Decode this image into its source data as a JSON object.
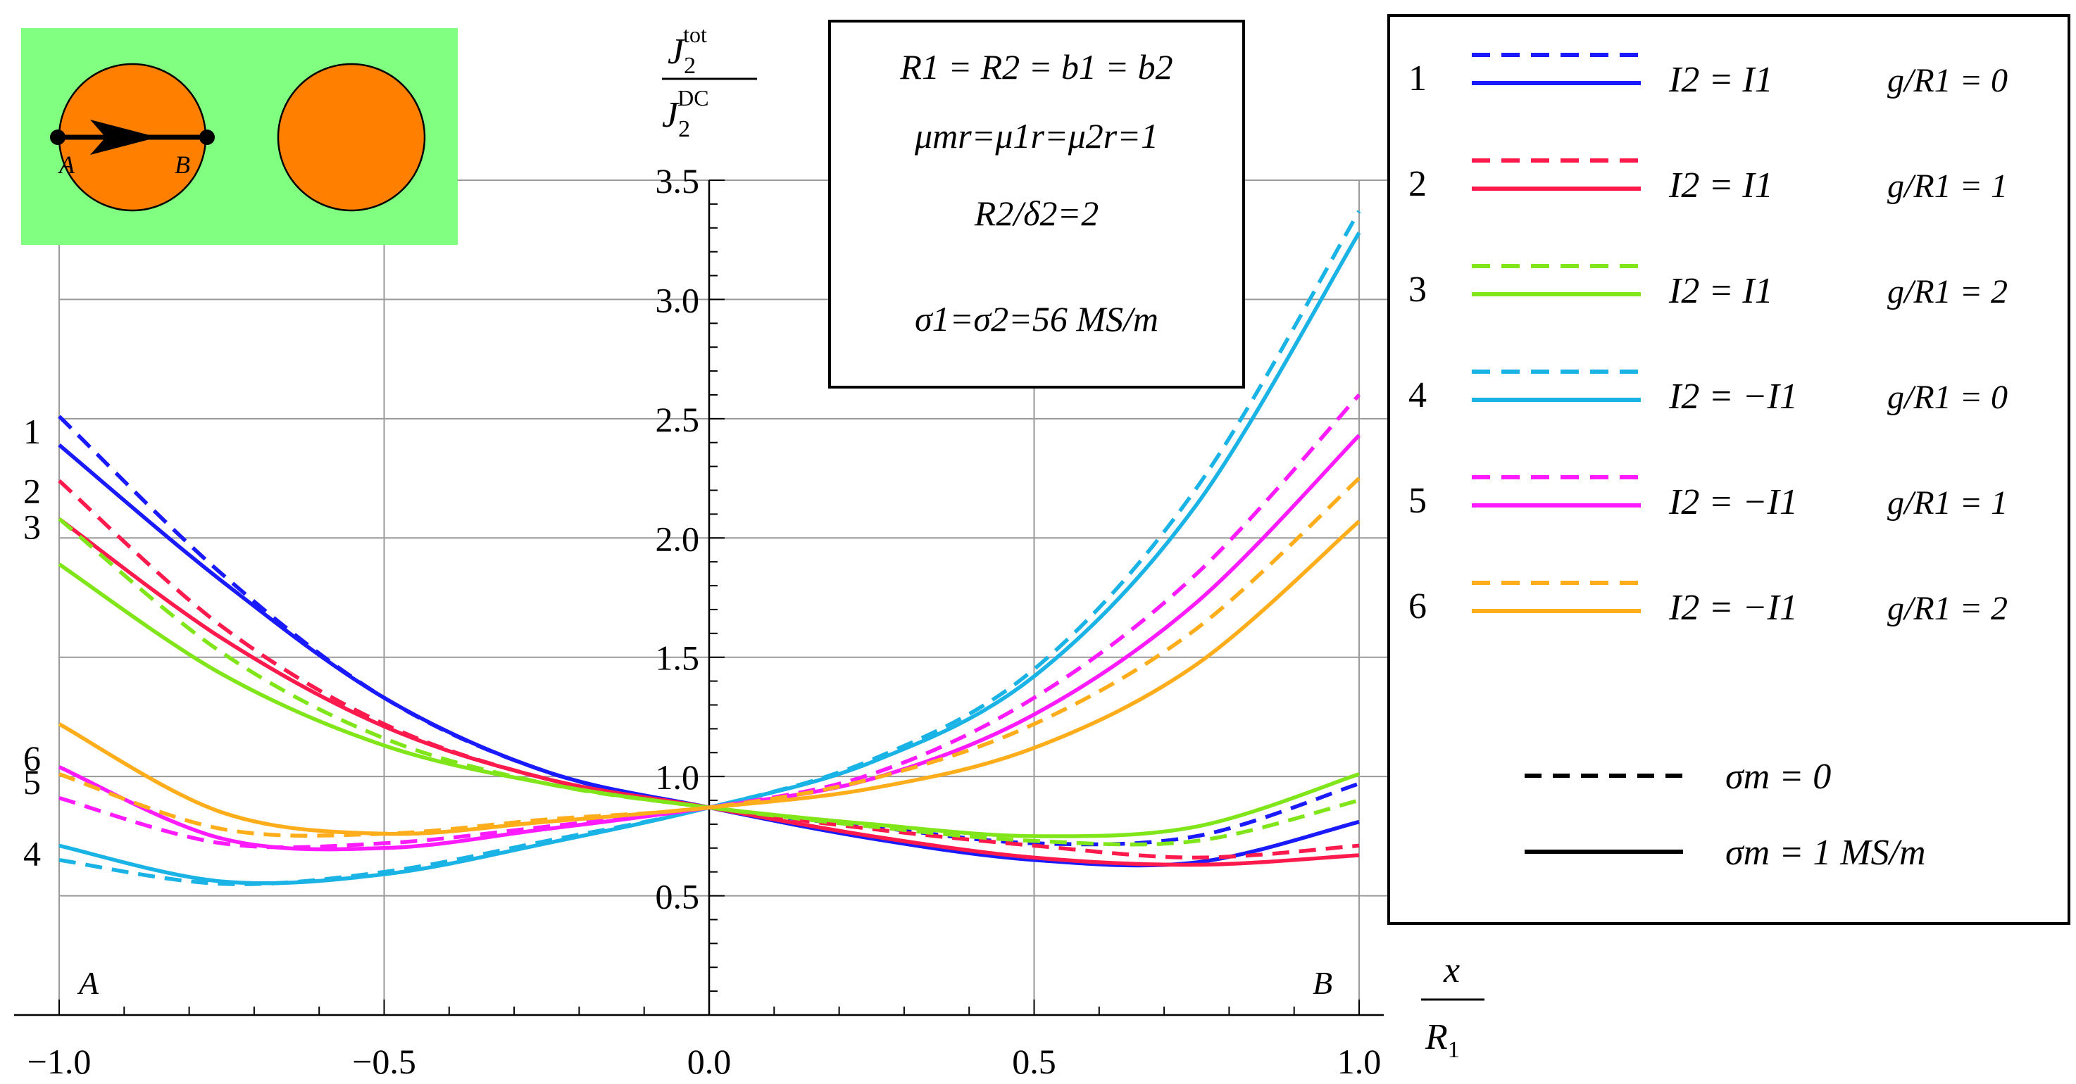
{
  "chart_data": {
    "type": "line",
    "title": "",
    "xlabel": "x / R1",
    "ylabel": "J2^tot / J2^DC",
    "xlim": [
      -1.0,
      1.0
    ],
    "ylim": [
      0.0,
      3.5
    ],
    "grid": true,
    "x_ticks": [
      "−1.0",
      "−0.5",
      "0.0",
      "0.5",
      "1.0"
    ],
    "y_ticks": [
      "0.5",
      "1.0",
      "1.5",
      "2.0",
      "2.5",
      "3.0",
      "3.5"
    ],
    "x_tick_values": [
      -1.0,
      -0.5,
      0.0,
      0.5,
      1.0
    ],
    "y_tick_values": [
      0.5,
      1.0,
      1.5,
      2.0,
      2.5,
      3.0,
      3.5
    ],
    "x_points": [
      -1.0,
      -0.75,
      -0.5,
      -0.25,
      0.0,
      0.25,
      0.5,
      0.75,
      1.0
    ],
    "point_labels": {
      "A": "A",
      "B": "B"
    },
    "left_curve_labels": [
      "1",
      "2",
      "3",
      "4",
      "5",
      "6"
    ],
    "ylabel_parts": {
      "num_base": "J",
      "num_sub": "2",
      "num_sup": "tot",
      "den_base": "J",
      "den_sub": "2",
      "den_sup": "DC"
    },
    "xlabel_parts": {
      "num": "x",
      "den_base": "R",
      "den_sub": "1"
    },
    "info_box": {
      "line1": "R1 = R2 = b1 = b2",
      "line2": "μmr=μ1r=μ2r=1",
      "line3": "R2/δ2=2",
      "line4": "σ1=σ2=56 MS/m"
    },
    "legend_position": "right",
    "legend_style": {
      "dashed": "σm = 0",
      "solid": "σm = 1 MS/m"
    },
    "series": [
      {
        "id": "1",
        "color": "#1a1aff",
        "style": "dashed",
        "current": "I2 = I1",
        "gR": "g/R1 = 0",
        "values": [
          2.51,
          1.85,
          1.33,
          1.02,
          0.87,
          0.79,
          0.72,
          0.75,
          0.97
        ]
      },
      {
        "id": "1",
        "color": "#1a1aff",
        "style": "solid",
        "current": "I2 = I1",
        "gR": "g/R1 = 0",
        "values": [
          2.39,
          1.82,
          1.33,
          1.02,
          0.87,
          0.74,
          0.65,
          0.64,
          0.81
        ]
      },
      {
        "id": "2",
        "color": "#ff1a4d",
        "style": "dashed",
        "current": "I2 = I1",
        "gR": "g/R1 = 1",
        "values": [
          2.24,
          1.63,
          1.22,
          0.99,
          0.87,
          0.78,
          0.71,
          0.66,
          0.71
        ]
      },
      {
        "id": "2",
        "color": "#ff1a4d",
        "style": "solid",
        "current": "I2 = I1",
        "gR": "g/R1 = 1",
        "values": [
          2.08,
          1.58,
          1.21,
          0.99,
          0.87,
          0.75,
          0.66,
          0.63,
          0.67
        ]
      },
      {
        "id": "3",
        "color": "#80e61a",
        "style": "dashed",
        "current": "I2 = I1",
        "gR": "g/R1 = 2",
        "values": [
          2.08,
          1.52,
          1.16,
          0.97,
          0.87,
          0.79,
          0.73,
          0.73,
          0.9
        ]
      },
      {
        "id": "3",
        "color": "#80e61a",
        "style": "solid",
        "current": "I2 = I1",
        "gR": "g/R1 = 2",
        "values": [
          1.89,
          1.43,
          1.13,
          0.97,
          0.87,
          0.8,
          0.75,
          0.79,
          1.01
        ]
      },
      {
        "id": "4",
        "color": "#1ab3e6",
        "style": "dashed",
        "current": "I2 = −I1",
        "gR": "g/R1 = 0",
        "values": [
          0.65,
          0.55,
          0.6,
          0.73,
          0.87,
          1.07,
          1.45,
          2.21,
          3.37
        ]
      },
      {
        "id": "4",
        "color": "#1ab3e6",
        "style": "solid",
        "current": "I2 = −I1",
        "gR": "g/R1 = 0",
        "values": [
          0.71,
          0.56,
          0.59,
          0.72,
          0.87,
          1.06,
          1.42,
          2.14,
          3.28
        ]
      },
      {
        "id": "5",
        "color": "#ff1aff",
        "style": "dashed",
        "current": "I2 = −I1",
        "gR": "g/R1 = 1",
        "values": [
          0.91,
          0.72,
          0.72,
          0.79,
          0.87,
          1.01,
          1.33,
          1.85,
          2.6
        ]
      },
      {
        "id": "5",
        "color": "#ff1aff",
        "style": "solid",
        "current": "I2 = −I1",
        "gR": "g/R1 = 1",
        "values": [
          1.04,
          0.74,
          0.7,
          0.78,
          0.87,
          0.99,
          1.26,
          1.73,
          2.43
        ]
      },
      {
        "id": "6",
        "color": "#ffad1a",
        "style": "dashed",
        "current": "I2 = −I1",
        "gR": "g/R1 = 2",
        "values": [
          1.01,
          0.78,
          0.76,
          0.82,
          0.87,
          0.99,
          1.22,
          1.62,
          2.25
        ]
      },
      {
        "id": "6",
        "color": "#ffad1a",
        "style": "solid",
        "current": "I2 = −I1",
        "gR": "g/R1 = 2",
        "values": [
          1.22,
          0.85,
          0.76,
          0.81,
          0.87,
          0.95,
          1.12,
          1.47,
          2.07
        ]
      }
    ]
  }
}
